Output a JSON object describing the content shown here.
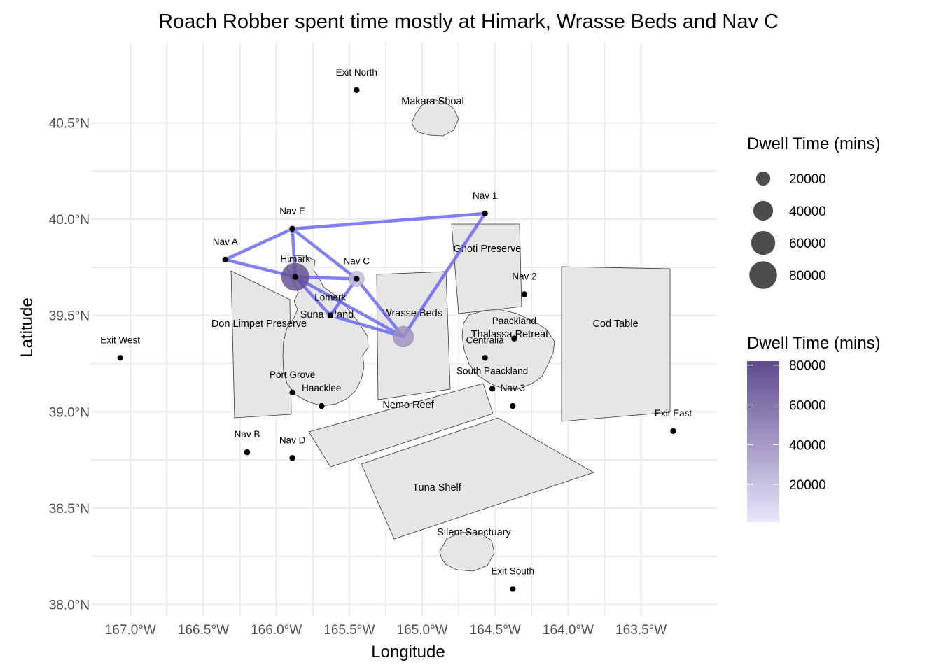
{
  "title": "Roach Robber spent time mostly at Himark, Wrasse Beds and Nav C",
  "axes": {
    "x_label": "Longitude",
    "y_label": "Latitude",
    "x_ticks": [
      {
        "value": -167.0,
        "label": "167.0°W"
      },
      {
        "value": -166.5,
        "label": "166.5°W"
      },
      {
        "value": -166.0,
        "label": "166.0°W"
      },
      {
        "value": -165.5,
        "label": "165.5°W"
      },
      {
        "value": -165.0,
        "label": "165.0°W"
      },
      {
        "value": -164.5,
        "label": "164.5°W"
      },
      {
        "value": -164.0,
        "label": "164.0°W"
      },
      {
        "value": -163.5,
        "label": "163.5°W"
      }
    ],
    "y_ticks": [
      {
        "value": 38.0,
        "label": "38.0°N"
      },
      {
        "value": 38.5,
        "label": "38.5°N"
      },
      {
        "value": 39.0,
        "label": "39.0°N"
      },
      {
        "value": 39.5,
        "label": "39.5°N"
      },
      {
        "value": 40.0,
        "label": "40.0°N"
      },
      {
        "value": 40.5,
        "label": "40.5°N"
      }
    ],
    "x_range": [
      -167.27,
      -162.98
    ],
    "y_range": [
      37.94,
      40.92
    ]
  },
  "places": [
    {
      "name": "Exit North",
      "lon": -165.45,
      "lat": 40.67
    },
    {
      "name": "Exit West",
      "lon": -167.07,
      "lat": 39.28
    },
    {
      "name": "Exit East",
      "lon": -163.28,
      "lat": 38.9
    },
    {
      "name": "Exit South",
      "lon": -164.38,
      "lat": 38.08
    },
    {
      "name": "Nav 1",
      "lon": -164.57,
      "lat": 40.03
    },
    {
      "name": "Nav 2",
      "lon": -164.3,
      "lat": 39.61
    },
    {
      "name": "Nav 3",
      "lon": -164.38,
      "lat": 39.03
    },
    {
      "name": "Nav A",
      "lon": -166.35,
      "lat": 39.79
    },
    {
      "name": "Nav B",
      "lon": -166.2,
      "lat": 38.79
    },
    {
      "name": "Nav C",
      "lon": -165.45,
      "lat": 39.69
    },
    {
      "name": "Nav D",
      "lon": -165.89,
      "lat": 38.76
    },
    {
      "name": "Nav E",
      "lon": -165.89,
      "lat": 39.95
    },
    {
      "name": "Himark",
      "lon": -165.87,
      "lat": 39.7
    },
    {
      "name": "Lomark",
      "lon": -165.63,
      "lat": 39.5
    },
    {
      "name": "Port Grove",
      "lon": -165.89,
      "lat": 39.1
    },
    {
      "name": "Haacklee",
      "lon": -165.69,
      "lat": 39.03
    },
    {
      "name": "Centralia",
      "lon": -164.57,
      "lat": 39.28
    },
    {
      "name": "Paackland",
      "lon": -164.37,
      "lat": 39.38
    },
    {
      "name": "South Paackland",
      "lon": -164.52,
      "lat": 39.12
    }
  ],
  "regions": [
    {
      "name": "Makara Shoal"
    },
    {
      "name": "Ghoti Preserve"
    },
    {
      "name": "Cod Table"
    },
    {
      "name": "Wrasse Beds"
    },
    {
      "name": "Don Limpet Preserve"
    },
    {
      "name": "Suna Island"
    },
    {
      "name": "Thalassa Retreat"
    },
    {
      "name": "Nemo Reef"
    },
    {
      "name": "Tuna Shelf"
    },
    {
      "name": "Silent Sanctuary"
    }
  ],
  "chart_data": {
    "type": "map",
    "title": "Roach Robber spent time mostly at Himark, Wrasse Beds and Nav C",
    "xlabel": "Longitude",
    "ylabel": "Latitude",
    "dwell": [
      {
        "name": "Himark",
        "lon": -165.87,
        "lat": 39.7,
        "minutes": 80000
      },
      {
        "name": "Wrasse Beds",
        "lon": -165.13,
        "lat": 39.39,
        "minutes": 45000
      },
      {
        "name": "Nav C",
        "lon": -165.45,
        "lat": 39.69,
        "minutes": 25000
      },
      {
        "name": "Nav E",
        "lon": -165.89,
        "lat": 39.95,
        "minutes": 5000
      },
      {
        "name": "Nav A",
        "lon": -166.35,
        "lat": 39.79,
        "minutes": 1500
      },
      {
        "name": "Nav 1",
        "lon": -164.57,
        "lat": 40.03,
        "minutes": 1500
      },
      {
        "name": "Lomark",
        "lon": -165.6,
        "lat": 39.5,
        "minutes": 1500
      }
    ],
    "routes": [
      {
        "from": "Nav A",
        "to": "Nav E"
      },
      {
        "from": "Nav A",
        "to": "Himark"
      },
      {
        "from": "Nav E",
        "to": "Nav 1"
      },
      {
        "from": "Nav E",
        "to": "Himark"
      },
      {
        "from": "Nav E",
        "to": "Nav C"
      },
      {
        "from": "Himark",
        "to": "Nav C"
      },
      {
        "from": "Himark",
        "to": "Wrasse Beds"
      },
      {
        "from": "Himark",
        "to": "Lomark"
      },
      {
        "from": "Nav C",
        "to": "Lomark"
      },
      {
        "from": "Nav C",
        "to": "Wrasse Beds"
      },
      {
        "from": "Lomark",
        "to": "Wrasse Beds"
      },
      {
        "from": "Wrasse Beds",
        "to": "Nav 1"
      }
    ]
  },
  "legend_size": {
    "title": "Dwell Time (mins)",
    "entries": [
      {
        "label": "20000",
        "value": 20000
      },
      {
        "label": "40000",
        "value": 40000
      },
      {
        "label": "60000",
        "value": 60000
      },
      {
        "label": "80000",
        "value": 80000
      }
    ]
  },
  "legend_color": {
    "title": "Dwell Time (mins)",
    "entries": [
      {
        "label": "80000",
        "value": 80000
      },
      {
        "label": "60000",
        "value": 60000
      },
      {
        "label": "40000",
        "value": 40000
      },
      {
        "label": "20000",
        "value": 20000
      }
    ],
    "range": [
      1000,
      82000
    ],
    "color_low": "#e8e6fa",
    "color_high": "#5e4a8f"
  },
  "colors": {
    "route": "#6464f0",
    "region_fill": "#e6e6e6",
    "region_stroke": "#333333",
    "grid": "#ebebeb",
    "point": "#000000"
  }
}
